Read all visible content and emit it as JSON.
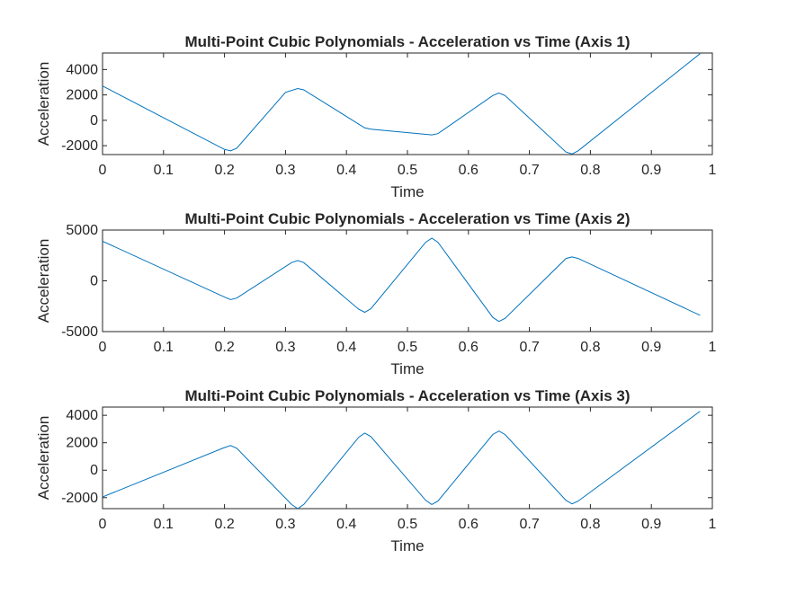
{
  "figure": {
    "background": "#ffffff",
    "line_color": "#0072BD",
    "axis_color": "#262626"
  },
  "chart_data": [
    {
      "type": "line",
      "title": "Multi-Point Cubic Polynomials - Acceleration vs Time (Axis 1)",
      "xlabel": "Time",
      "ylabel": "Acceleration",
      "xlim": [
        0,
        1
      ],
      "ylim": [
        -2700,
        5300
      ],
      "xticks": [
        0,
        0.1,
        0.2,
        0.3,
        0.4,
        0.5,
        0.6,
        0.7,
        0.8,
        0.9,
        1
      ],
      "xtick_labels": [
        "0",
        "0.1",
        "0.2",
        "0.3",
        "0.4",
        "0.5",
        "0.6",
        "0.7",
        "0.8",
        "0.9",
        "1"
      ],
      "yticks": [
        -2000,
        0,
        2000,
        4000
      ],
      "ytick_labels": [
        "-2000",
        "0",
        "2000",
        "4000"
      ],
      "grid": false,
      "series": [
        {
          "x": [
            0,
            0.2,
            0.21,
            0.22,
            0.3,
            0.32,
            0.33,
            0.43,
            0.44,
            0.54,
            0.55,
            0.64,
            0.65,
            0.66,
            0.76,
            0.77,
            0.78,
            0.98
          ],
          "y": [
            2700,
            -2300,
            -2400,
            -2200,
            2200,
            2500,
            2400,
            -600,
            -700,
            -1150,
            -1050,
            1950,
            2150,
            1950,
            -2500,
            -2650,
            -2400,
            5250
          ]
        }
      ]
    },
    {
      "type": "line",
      "title": "Multi-Point Cubic Polynomials - Acceleration vs Time (Axis 2)",
      "xlabel": "Time",
      "ylabel": "Acceleration",
      "xlim": [
        0,
        1
      ],
      "ylim": [
        -5000,
        5000
      ],
      "xticks": [
        0,
        0.1,
        0.2,
        0.3,
        0.4,
        0.5,
        0.6,
        0.7,
        0.8,
        0.9,
        1
      ],
      "xtick_labels": [
        "0",
        "0.1",
        "0.2",
        "0.3",
        "0.4",
        "0.5",
        "0.6",
        "0.7",
        "0.8",
        "0.9",
        "1"
      ],
      "yticks": [
        -5000,
        0,
        5000
      ],
      "ytick_labels": [
        "-5000",
        "0",
        "5000"
      ],
      "grid": false,
      "series": [
        {
          "x": [
            0,
            0.2,
            0.21,
            0.22,
            0.31,
            0.32,
            0.33,
            0.42,
            0.43,
            0.44,
            0.53,
            0.54,
            0.55,
            0.64,
            0.65,
            0.66,
            0.76,
            0.77,
            0.78,
            0.98
          ],
          "y": [
            3900,
            -1600,
            -1850,
            -1700,
            1800,
            2000,
            1800,
            -2800,
            -3100,
            -2750,
            3800,
            4200,
            3800,
            -3600,
            -4000,
            -3700,
            2200,
            2350,
            2200,
            -3400
          ]
        }
      ]
    },
    {
      "type": "line",
      "title": "Multi-Point Cubic Polynomials - Acceleration vs Time (Axis 3)",
      "xlabel": "Time",
      "ylabel": "Acceleration",
      "xlim": [
        0,
        1
      ],
      "ylim": [
        -2800,
        4600
      ],
      "xticks": [
        0,
        0.1,
        0.2,
        0.3,
        0.4,
        0.5,
        0.6,
        0.7,
        0.8,
        0.9,
        1
      ],
      "xtick_labels": [
        "0",
        "0.1",
        "0.2",
        "0.3",
        "0.4",
        "0.5",
        "0.6",
        "0.7",
        "0.8",
        "0.9",
        "1"
      ],
      "yticks": [
        -2000,
        0,
        2000,
        4000
      ],
      "ytick_labels": [
        "-2000",
        "0",
        "2000",
        "4000"
      ],
      "grid": false,
      "series": [
        {
          "x": [
            0,
            0.2,
            0.21,
            0.22,
            0.31,
            0.32,
            0.33,
            0.42,
            0.43,
            0.44,
            0.53,
            0.54,
            0.55,
            0.64,
            0.65,
            0.66,
            0.76,
            0.77,
            0.78,
            0.98
          ],
          "y": [
            -1950,
            1650,
            1800,
            1600,
            -2500,
            -2800,
            -2500,
            2400,
            2700,
            2450,
            -2200,
            -2500,
            -2250,
            2600,
            2850,
            2600,
            -2200,
            -2450,
            -2250,
            4300
          ]
        }
      ]
    }
  ]
}
